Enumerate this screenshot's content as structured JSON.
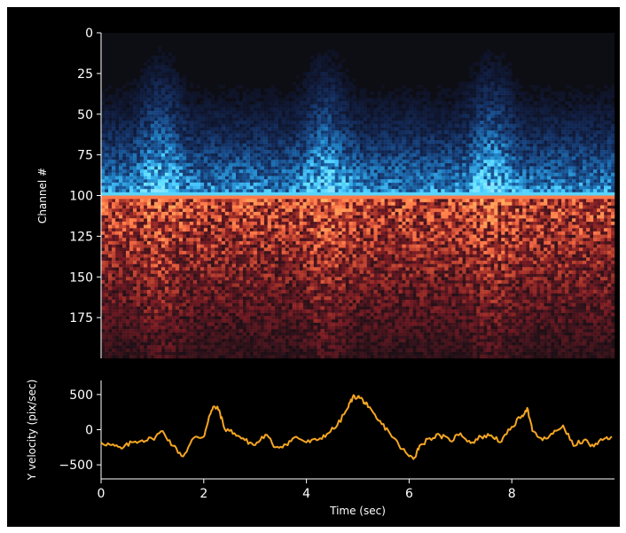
{
  "chart_data": [
    {
      "type": "heatmap",
      "title": "",
      "xlabel": "",
      "ylabel": "Channel #",
      "xlim": [
        0,
        10
      ],
      "ylim": [
        200,
        0
      ],
      "yticks": [
        0,
        25,
        50,
        75,
        100,
        125,
        150,
        175
      ],
      "ytick_labels": [
        "0",
        "25",
        "50",
        "75",
        "100",
        "125",
        "150",
        "175"
      ],
      "n_channels": 200,
      "boundary_channel": 100,
      "upper_colormap": "icefire-blue",
      "lower_colormap": "icefire-red",
      "grid": false
    },
    {
      "type": "line",
      "title": "",
      "xlabel": "Time (sec)",
      "ylabel": "Y velocity (pix/sec)",
      "xlim": [
        0,
        10
      ],
      "ylim": [
        -700,
        700
      ],
      "xticks": [
        0,
        2,
        4,
        6,
        8
      ],
      "xtick_labels": [
        "0",
        "2",
        "4",
        "6",
        "8"
      ],
      "yticks": [
        500,
        0,
        -500
      ],
      "ytick_labels": [
        "500",
        "0",
        "−500"
      ],
      "color": "#f5a623",
      "grid": false,
      "x": [
        0,
        0.2,
        0.4,
        0.6,
        0.8,
        1.0,
        1.2,
        1.4,
        1.6,
        1.8,
        2.0,
        2.1,
        2.2,
        2.3,
        2.4,
        2.6,
        2.8,
        3.0,
        3.2,
        3.4,
        3.6,
        3.8,
        4.0,
        4.2,
        4.4,
        4.6,
        4.8,
        4.9,
        5.0,
        5.1,
        5.2,
        5.4,
        5.6,
        5.8,
        6.0,
        6.1,
        6.2,
        6.4,
        6.6,
        6.8,
        7.0,
        7.2,
        7.4,
        7.6,
        7.8,
        8.0,
        8.2,
        8.3,
        8.4,
        8.6,
        8.8,
        9.0,
        9.2,
        9.4,
        9.6,
        9.8,
        9.95
      ],
      "y": [
        -180,
        -220,
        -270,
        -180,
        -150,
        -130,
        -20,
        -230,
        -380,
        -120,
        -100,
        180,
        330,
        280,
        20,
        -50,
        -150,
        -220,
        -70,
        -250,
        -210,
        -100,
        -180,
        -150,
        -60,
        60,
        300,
        460,
        470,
        420,
        320,
        130,
        -20,
        -220,
        -380,
        -400,
        -230,
        -120,
        -80,
        -160,
        -50,
        -190,
        -100,
        -80,
        -170,
        40,
        200,
        310,
        -20,
        -150,
        -60,
        60,
        -230,
        -150,
        -240,
        -130,
        -100
      ]
    }
  ]
}
